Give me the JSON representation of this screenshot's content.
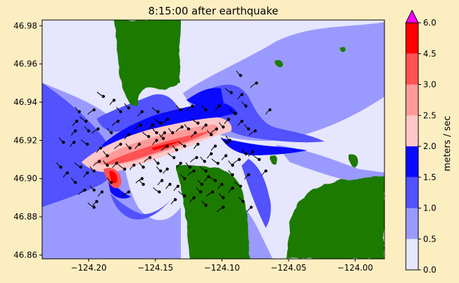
{
  "chart_data": {
    "type": "heatmap",
    "title": "8:15:00 after earthquake",
    "xlabel": "",
    "ylabel": "",
    "xlim": [
      -124.235,
      -123.978
    ],
    "ylim": [
      46.858,
      46.983
    ],
    "x_ticks": [
      -124.2,
      -124.15,
      -124.1,
      -124.05,
      -124.0
    ],
    "x_tick_labels": [
      "−124.20",
      "−124.15",
      "−124.10",
      "−124.05",
      "−124.00"
    ],
    "y_ticks": [
      46.86,
      46.88,
      46.9,
      46.92,
      46.94,
      46.96,
      46.98
    ],
    "y_tick_labels": [
      "46.86",
      "46.88",
      "46.90",
      "46.92",
      "46.94",
      "46.96",
      "46.98"
    ],
    "colorbar": {
      "label": "meters / sec",
      "levels": [
        0.0,
        0.5,
        1.0,
        1.5,
        2.0,
        2.5,
        3.0,
        4.5,
        6.0
      ],
      "level_labels": [
        "0.0",
        "0.5",
        "1.0",
        "1.5",
        "2.0",
        "2.5",
        "3.0",
        "4.5",
        "6.0"
      ],
      "colors": [
        "#e6e6fe",
        "#9a9afe",
        "#5252fe",
        "#0a0afe",
        "#ffc8c8",
        "#ff9a9a",
        "#ff5252",
        "#ff0000"
      ],
      "extend_max_color": "#ff00ff"
    },
    "land_color": "#1e7a00",
    "particles": [
      [
        -124.189,
        46.943
      ],
      [
        -124.181,
        46.941
      ],
      [
        -124.176,
        46.935
      ],
      [
        -124.196,
        46.936
      ],
      [
        -124.207,
        46.935
      ],
      [
        -124.209,
        46.93
      ],
      [
        -124.202,
        46.93
      ],
      [
        -124.21,
        46.925
      ],
      [
        -124.2,
        46.925
      ],
      [
        -124.193,
        46.926
      ],
      [
        -124.219,
        46.919
      ],
      [
        -124.211,
        46.919
      ],
      [
        -124.201,
        46.918
      ],
      [
        -124.191,
        46.916
      ],
      [
        -124.186,
        46.912
      ],
      [
        -124.176,
        46.918
      ],
      [
        -124.169,
        46.916
      ],
      [
        -124.162,
        46.918
      ],
      [
        -124.155,
        46.922
      ],
      [
        -124.149,
        46.92
      ],
      [
        -124.144,
        46.921
      ],
      [
        -124.141,
        46.917
      ],
      [
        -124.149,
        46.924
      ],
      [
        -124.152,
        46.928
      ],
      [
        -124.146,
        46.929
      ],
      [
        -124.143,
        46.924
      ],
      [
        -124.137,
        46.924
      ],
      [
        -124.13,
        46.927
      ],
      [
        -124.125,
        46.926
      ],
      [
        -124.12,
        46.924
      ],
      [
        -124.118,
        46.929
      ],
      [
        -124.112,
        46.928
      ],
      [
        -124.108,
        46.923
      ],
      [
        -124.104,
        46.926
      ],
      [
        -124.099,
        46.927
      ],
      [
        -124.095,
        46.931
      ],
      [
        -124.09,
        46.934
      ],
      [
        -124.085,
        46.93
      ],
      [
        -124.08,
        46.926
      ],
      [
        -124.075,
        46.925
      ],
      [
        -124.221,
        46.906
      ],
      [
        -124.216,
        46.903
      ],
      [
        -124.206,
        46.906
      ],
      [
        -124.201,
        46.903
      ],
      [
        -124.196,
        46.904
      ],
      [
        -124.192,
        46.909
      ],
      [
        -124.186,
        46.907
      ],
      [
        -124.179,
        46.908
      ],
      [
        -124.173,
        46.905
      ],
      [
        -124.166,
        46.907
      ],
      [
        -124.159,
        46.906
      ],
      [
        -124.154,
        46.911
      ],
      [
        -124.148,
        46.908
      ],
      [
        -124.141,
        46.905
      ],
      [
        -124.136,
        46.911
      ],
      [
        -124.131,
        46.908
      ],
      [
        -124.124,
        46.906
      ],
      [
        -124.119,
        46.911
      ],
      [
        -124.113,
        46.909
      ],
      [
        -124.108,
        46.913
      ],
      [
        -124.103,
        46.908
      ],
      [
        -124.097,
        46.912
      ],
      [
        -124.092,
        46.907
      ],
      [
        -124.087,
        46.91
      ],
      [
        -124.082,
        46.913
      ],
      [
        -124.077,
        46.914
      ],
      [
        -124.072,
        46.91
      ],
      [
        -124.067,
        46.904
      ],
      [
        -124.21,
        46.898
      ],
      [
        -124.203,
        46.894
      ],
      [
        -124.196,
        46.894
      ],
      [
        -124.194,
        46.888
      ],
      [
        -124.196,
        46.885
      ],
      [
        -124.19,
        46.893
      ],
      [
        -124.183,
        46.898
      ],
      [
        -124.17,
        46.893
      ],
      [
        -124.159,
        46.897
      ],
      [
        -124.145,
        46.899
      ],
      [
        -124.147,
        46.893
      ],
      [
        -124.133,
        46.896
      ],
      [
        -124.128,
        46.9
      ],
      [
        -124.121,
        46.904
      ],
      [
        -124.115,
        46.897
      ],
      [
        -124.11,
        46.901
      ],
      [
        -124.105,
        46.899
      ],
      [
        -124.1,
        46.897
      ],
      [
        -124.099,
        46.89
      ],
      [
        -124.107,
        46.893
      ],
      [
        -124.116,
        46.893
      ],
      [
        -124.121,
        46.89
      ],
      [
        -124.128,
        46.891
      ],
      [
        -124.135,
        46.889
      ],
      [
        -124.112,
        46.886
      ],
      [
        -124.099,
        46.885
      ],
      [
        -124.084,
        46.888
      ],
      [
        -124.078,
        46.885
      ],
      [
        -124.086,
        46.896
      ],
      [
        -124.08,
        46.902
      ],
      [
        -124.092,
        46.902
      ],
      [
        -124.178,
        46.93
      ],
      [
        -124.17,
        46.937
      ],
      [
        -124.16,
        46.935
      ],
      [
        -124.148,
        46.935
      ],
      [
        -124.141,
        46.931
      ],
      [
        -124.131,
        46.936
      ],
      [
        -124.122,
        46.938
      ],
      [
        -124.112,
        46.936
      ],
      [
        -124.102,
        46.938
      ],
      [
        -124.093,
        46.945
      ],
      [
        -124.085,
        46.944
      ],
      [
        -124.082,
        46.938
      ],
      [
        -124.074,
        46.95
      ],
      [
        -124.086,
        46.954
      ],
      [
        -124.064,
        46.936
      ],
      [
        -124.096,
        46.919
      ],
      [
        -124.118,
        46.918
      ],
      [
        -124.134,
        46.915
      ],
      [
        -124.161,
        46.928
      ],
      [
        -124.183,
        46.924
      ],
      [
        -124.17,
        46.923
      ],
      [
        -124.128,
        46.917
      ],
      [
        -124.105,
        46.917
      ],
      [
        -124.094,
        46.92
      ],
      [
        -124.16,
        46.9
      ],
      [
        -124.146,
        46.904
      ],
      [
        -124.139,
        46.897
      ],
      [
        -124.112,
        46.904
      ],
      [
        -124.092,
        46.895
      ]
    ]
  }
}
